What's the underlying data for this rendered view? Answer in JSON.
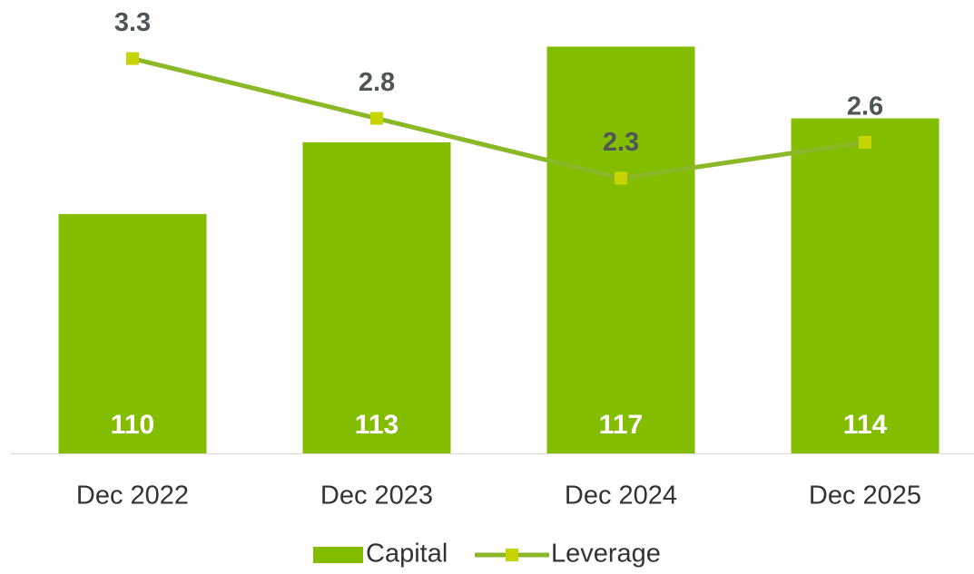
{
  "chart_data": {
    "type": "bar",
    "categories": [
      "Dec 2022",
      "Dec 2023",
      "Dec 2024",
      "Dec 2025"
    ],
    "series": [
      {
        "name": "Capital",
        "type": "bar",
        "color": "#84bc00",
        "values": [
          110,
          113,
          117,
          114
        ]
      },
      {
        "name": "Leverage",
        "type": "line",
        "axis": "y2",
        "color": "#8ab826",
        "marker_color": "#c8d400",
        "values": [
          3.3,
          2.8,
          2.3,
          2.6
        ]
      }
    ],
    "ylim": [
      100,
      118
    ],
    "y2lim": [
      0,
      3.6
    ],
    "grid": false,
    "legend": "bottom"
  }
}
